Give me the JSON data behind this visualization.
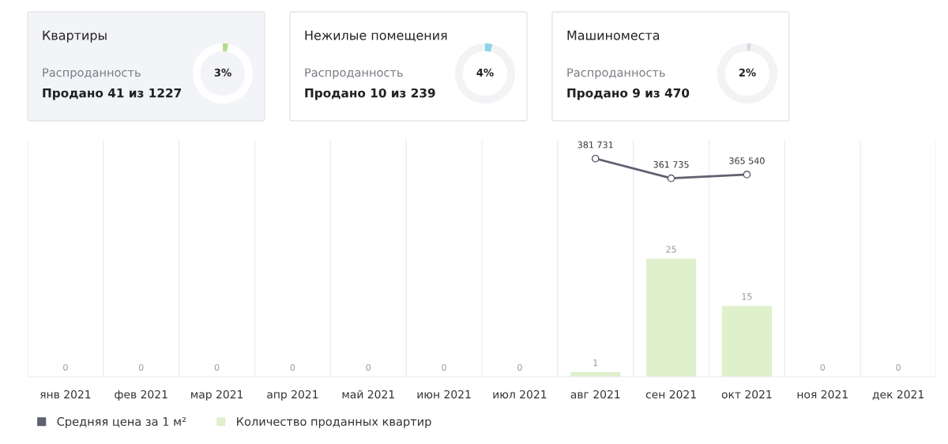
{
  "chart_data": [
    {
      "type": "donut",
      "title": "Квартиры",
      "annotations": [
        "Распроданность",
        "Продано 41 из 1227"
      ],
      "categories": [
        null,
        null
      ],
      "values": [
        3,
        97
      ],
      "colors": [
        "#b5dc8a",
        "#ffffff"
      ],
      "value_labels": [
        "3%",
        null
      ]
    },
    {
      "type": "donut",
      "title": "Нежилые помещения",
      "annotations": [
        "Распроданность",
        "Продано 10 из 239"
      ],
      "categories": [
        null,
        null
      ],
      "values": [
        4,
        96
      ],
      "colors": [
        "#8dd3ea",
        "#f2f3f5"
      ],
      "value_labels": [
        "4%",
        null
      ]
    },
    {
      "type": "donut",
      "title": "Машиноместа",
      "annotations": [
        "Распроданность",
        "Продано 9 из 470"
      ],
      "categories": [
        null,
        null
      ],
      "values": [
        2,
        98
      ],
      "colors": [
        "#d9d9e3",
        "#f2f3f5"
      ],
      "value_labels": [
        "2%",
        null
      ]
    },
    {
      "type": "bar",
      "categories": [
        "янв 2021",
        "фев 2021",
        "мар 2021",
        "апр 2021",
        "май 2021",
        "июн 2021",
        "июл 2021",
        "авг 2021",
        "сен 2021",
        "окт 2021",
        "ноя 2021",
        "дек 2021"
      ],
      "series": [
        {
          "name": "Средняя цена за 1 м²",
          "type": "line",
          "axis": "y2",
          "color": "#5f6070",
          "values": [
            null,
            null,
            null,
            null,
            null,
            null,
            null,
            381731,
            361735,
            365540,
            null,
            null
          ]
        },
        {
          "name": "Количество проданных квартир",
          "type": "bar",
          "color": "#dff0cc",
          "values": [
            0,
            0,
            0,
            0,
            0,
            0,
            0,
            1,
            25,
            15,
            0,
            0
          ]
        }
      ],
      "ylim": [
        0,
        50
      ],
      "y2lim": [
        160000,
        400000
      ],
      "data_labels": true,
      "tick_labels": "x",
      "grid": "x",
      "legend": "bottom left",
      "marker": "circle"
    }
  ]
}
